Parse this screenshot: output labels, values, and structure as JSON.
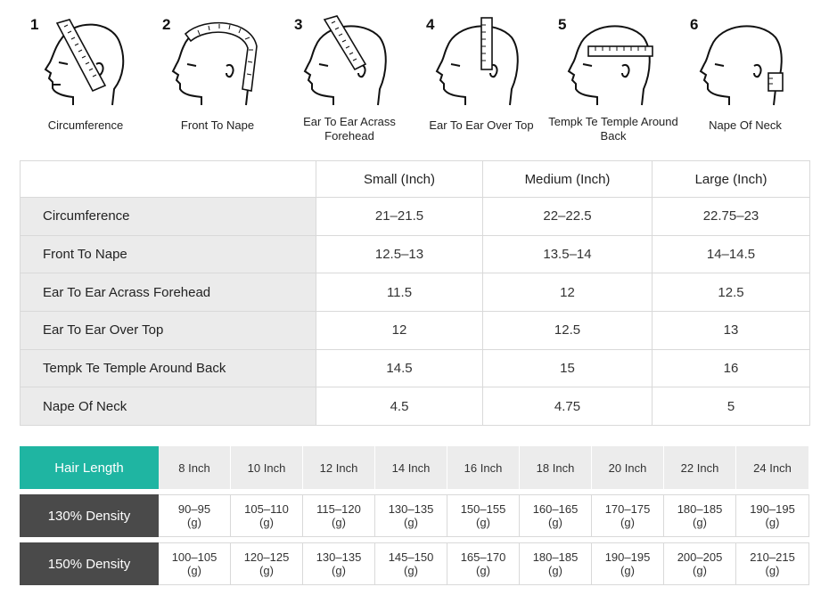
{
  "measurements": [
    {
      "number": "1",
      "caption": "Circumference",
      "icon": "head-circumference-icon"
    },
    {
      "number": "2",
      "caption": "Front To Nape",
      "icon": "head-front-to-nape-icon"
    },
    {
      "number": "3",
      "caption": "Ear To Ear Acrass Forehead",
      "icon": "head-ear-to-ear-forehead-icon"
    },
    {
      "number": "4",
      "caption": "Ear To Ear Over Top",
      "icon": "head-ear-to-ear-top-icon"
    },
    {
      "number": "5",
      "caption": "Tempk Te Temple Around Back",
      "icon": "head-temple-around-back-icon"
    },
    {
      "number": "6",
      "caption": "Nape Of Neck",
      "icon": "head-nape-of-neck-icon"
    }
  ],
  "size_table": {
    "headers": [
      "",
      "Small (Inch)",
      "Medium (Inch)",
      "Large (Inch)"
    ],
    "rows": [
      {
        "label": "Circumference",
        "values": [
          "21–21.5",
          "22–22.5",
          "22.75–23"
        ]
      },
      {
        "label": "Front To Nape",
        "values": [
          "12.5–13",
          "13.5–14",
          "14–14.5"
        ]
      },
      {
        "label": "Ear To Ear Acrass Forehead",
        "values": [
          "11.5",
          "12",
          "12.5"
        ]
      },
      {
        "label": "Ear To Ear Over Top",
        "values": [
          "12",
          "12.5",
          "13"
        ]
      },
      {
        "label": "Tempk Te Temple Around Back",
        "values": [
          "14.5",
          "15",
          "16"
        ]
      },
      {
        "label": "Nape Of Neck",
        "values": [
          "4.5",
          "4.75",
          "5"
        ]
      }
    ]
  },
  "density_table": {
    "header_label": "Hair Length",
    "lengths": [
      "8 Inch",
      "10 Inch",
      "12 Inch",
      "14 Inch",
      "16 Inch",
      "18 Inch",
      "20 Inch",
      "22 Inch",
      "24 Inch"
    ],
    "rows": [
      {
        "label": "130% Density",
        "values": [
          "90–95",
          "105–110",
          "115–120",
          "130–135",
          "150–155",
          "160–165",
          "170–175",
          "180–185",
          "190–195"
        ]
      },
      {
        "label": "150% Density",
        "values": [
          "100–105",
          "120–125",
          "130–135",
          "145–150",
          "165–170",
          "180–185",
          "190–195",
          "200–205",
          "210–215"
        ]
      }
    ],
    "unit": "(g)"
  },
  "colors": {
    "header_teal": "#1fb5a2",
    "density_label_bg": "#4a4a4a",
    "label_cell_bg": "#ebebeb",
    "border": "#d9d9d9"
  }
}
